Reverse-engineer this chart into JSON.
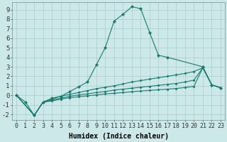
{
  "xlabel": "Humidex (Indice chaleur)",
  "background_color": "#cce8e8",
  "grid_color": "#aacccc",
  "line_color": "#1a7a6e",
  "x_ticks": [
    0,
    1,
    2,
    3,
    4,
    5,
    6,
    7,
    8,
    9,
    10,
    11,
    12,
    13,
    14,
    15,
    16,
    17,
    18,
    19,
    20,
    21,
    22,
    23
  ],
  "y_ticks": [
    -2,
    -1,
    0,
    1,
    2,
    3,
    4,
    5,
    6,
    7,
    8,
    9
  ],
  "ylim": [
    -2.6,
    9.8
  ],
  "xlim": [
    -0.5,
    23.5
  ],
  "series": [
    {
      "x": [
        0,
        1,
        2,
        3,
        4,
        5,
        6,
        7,
        8,
        9,
        10,
        11,
        12,
        13,
        14,
        15,
        16,
        17,
        21,
        22,
        23
      ],
      "y": [
        0,
        -0.7,
        -2.1,
        -0.7,
        -0.3,
        -0.1,
        0.4,
        0.9,
        1.4,
        3.2,
        5.0,
        7.8,
        8.5,
        9.3,
        9.1,
        6.6,
        4.2,
        4.0,
        3.0,
        1.1,
        0.8
      ]
    },
    {
      "x": [
        0,
        2,
        3,
        4,
        5,
        6,
        7,
        8,
        9,
        10,
        11,
        12,
        13,
        14,
        15,
        16,
        17,
        18,
        19,
        20,
        21,
        22,
        23
      ],
      "y": [
        0,
        -2.1,
        -0.7,
        -0.4,
        -0.1,
        0.1,
        0.3,
        0.5,
        0.7,
        0.85,
        1.0,
        1.2,
        1.4,
        1.55,
        1.7,
        1.85,
        2.0,
        2.15,
        2.3,
        2.5,
        2.9,
        1.1,
        0.8
      ]
    },
    {
      "x": [
        0,
        2,
        3,
        4,
        5,
        6,
        7,
        8,
        9,
        10,
        11,
        12,
        13,
        14,
        15,
        16,
        17,
        18,
        19,
        20,
        21,
        22,
        23
      ],
      "y": [
        0,
        -2.1,
        -0.7,
        -0.5,
        -0.3,
        -0.1,
        0.05,
        0.15,
        0.3,
        0.4,
        0.55,
        0.65,
        0.75,
        0.85,
        0.95,
        1.05,
        1.15,
        1.25,
        1.4,
        1.6,
        2.9,
        1.1,
        0.8
      ]
    },
    {
      "x": [
        0,
        2,
        3,
        4,
        5,
        6,
        7,
        8,
        9,
        10,
        11,
        12,
        13,
        14,
        15,
        16,
        17,
        18,
        19,
        20,
        21,
        22,
        23
      ],
      "y": [
        0,
        -2.1,
        -0.7,
        -0.6,
        -0.4,
        -0.25,
        -0.15,
        -0.05,
        0.05,
        0.15,
        0.22,
        0.3,
        0.38,
        0.45,
        0.52,
        0.58,
        0.65,
        0.72,
        0.82,
        0.95,
        2.9,
        1.1,
        0.8
      ]
    }
  ],
  "tick_fontsize": 6,
  "xlabel_fontsize": 7
}
